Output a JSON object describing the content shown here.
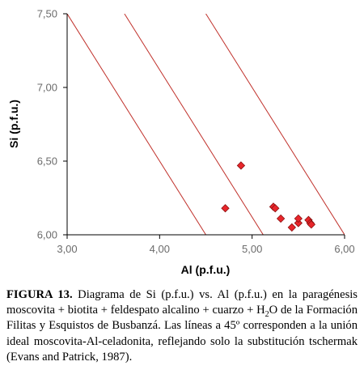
{
  "chart_data": {
    "type": "scatter",
    "title": "",
    "xlabel": "Al (p.f.u.)",
    "ylabel": "Si (p.f.u.)",
    "xlim": [
      3.0,
      6.0
    ],
    "ylim": [
      6.0,
      7.5
    ],
    "x_ticks": [
      "3,00",
      "4,00",
      "5,00",
      "6,00"
    ],
    "y_ticks": [
      "6,00",
      "6,50",
      "7,00",
      "7,50"
    ],
    "x_tick_values": [
      3.0,
      4.0,
      5.0,
      6.0
    ],
    "y_tick_values": [
      6.0,
      6.5,
      7.0,
      7.5
    ],
    "grid": false,
    "marker": "diamond",
    "marker_color": "#e8262b",
    "line_color": "#c0302a",
    "reference_lines": [
      {
        "slope": -1,
        "x_at_y_top": 3.0,
        "x_at_y_bottom": 4.5
      },
      {
        "slope": -1,
        "x_at_y_top": 3.62,
        "x_at_y_bottom": 5.12
      },
      {
        "slope": -1,
        "x_at_y_top": 4.5,
        "x_at_y_bottom": 6.0
      }
    ],
    "points": [
      {
        "x": 4.71,
        "y": 6.18
      },
      {
        "x": 4.88,
        "y": 6.47
      },
      {
        "x": 5.23,
        "y": 6.19
      },
      {
        "x": 5.25,
        "y": 6.18
      },
      {
        "x": 5.31,
        "y": 6.11
      },
      {
        "x": 5.43,
        "y": 6.05
      },
      {
        "x": 5.5,
        "y": 6.08
      },
      {
        "x": 5.5,
        "y": 6.11
      },
      {
        "x": 5.61,
        "y": 6.1
      },
      {
        "x": 5.63,
        "y": 6.08
      },
      {
        "x": 5.64,
        "y": 6.07
      }
    ]
  },
  "caption": {
    "label": "FIGURA 13.",
    "text_before_sub": " Diagrama de Si (p.f.u.) vs. Al (p.f.u.) en la paragénesis moscovita + biotita + feldespato alcalino + cuarzo + H",
    "sub": "2",
    "text_after_sub": "O de la Formación Filitas y Esquistos de Busbanzá. Las líneas a 45º corresponden a la unión ideal moscovita-Al-celadonita, reflejando solo la substitución tschermak (Evans and Patrick, 1987)."
  }
}
